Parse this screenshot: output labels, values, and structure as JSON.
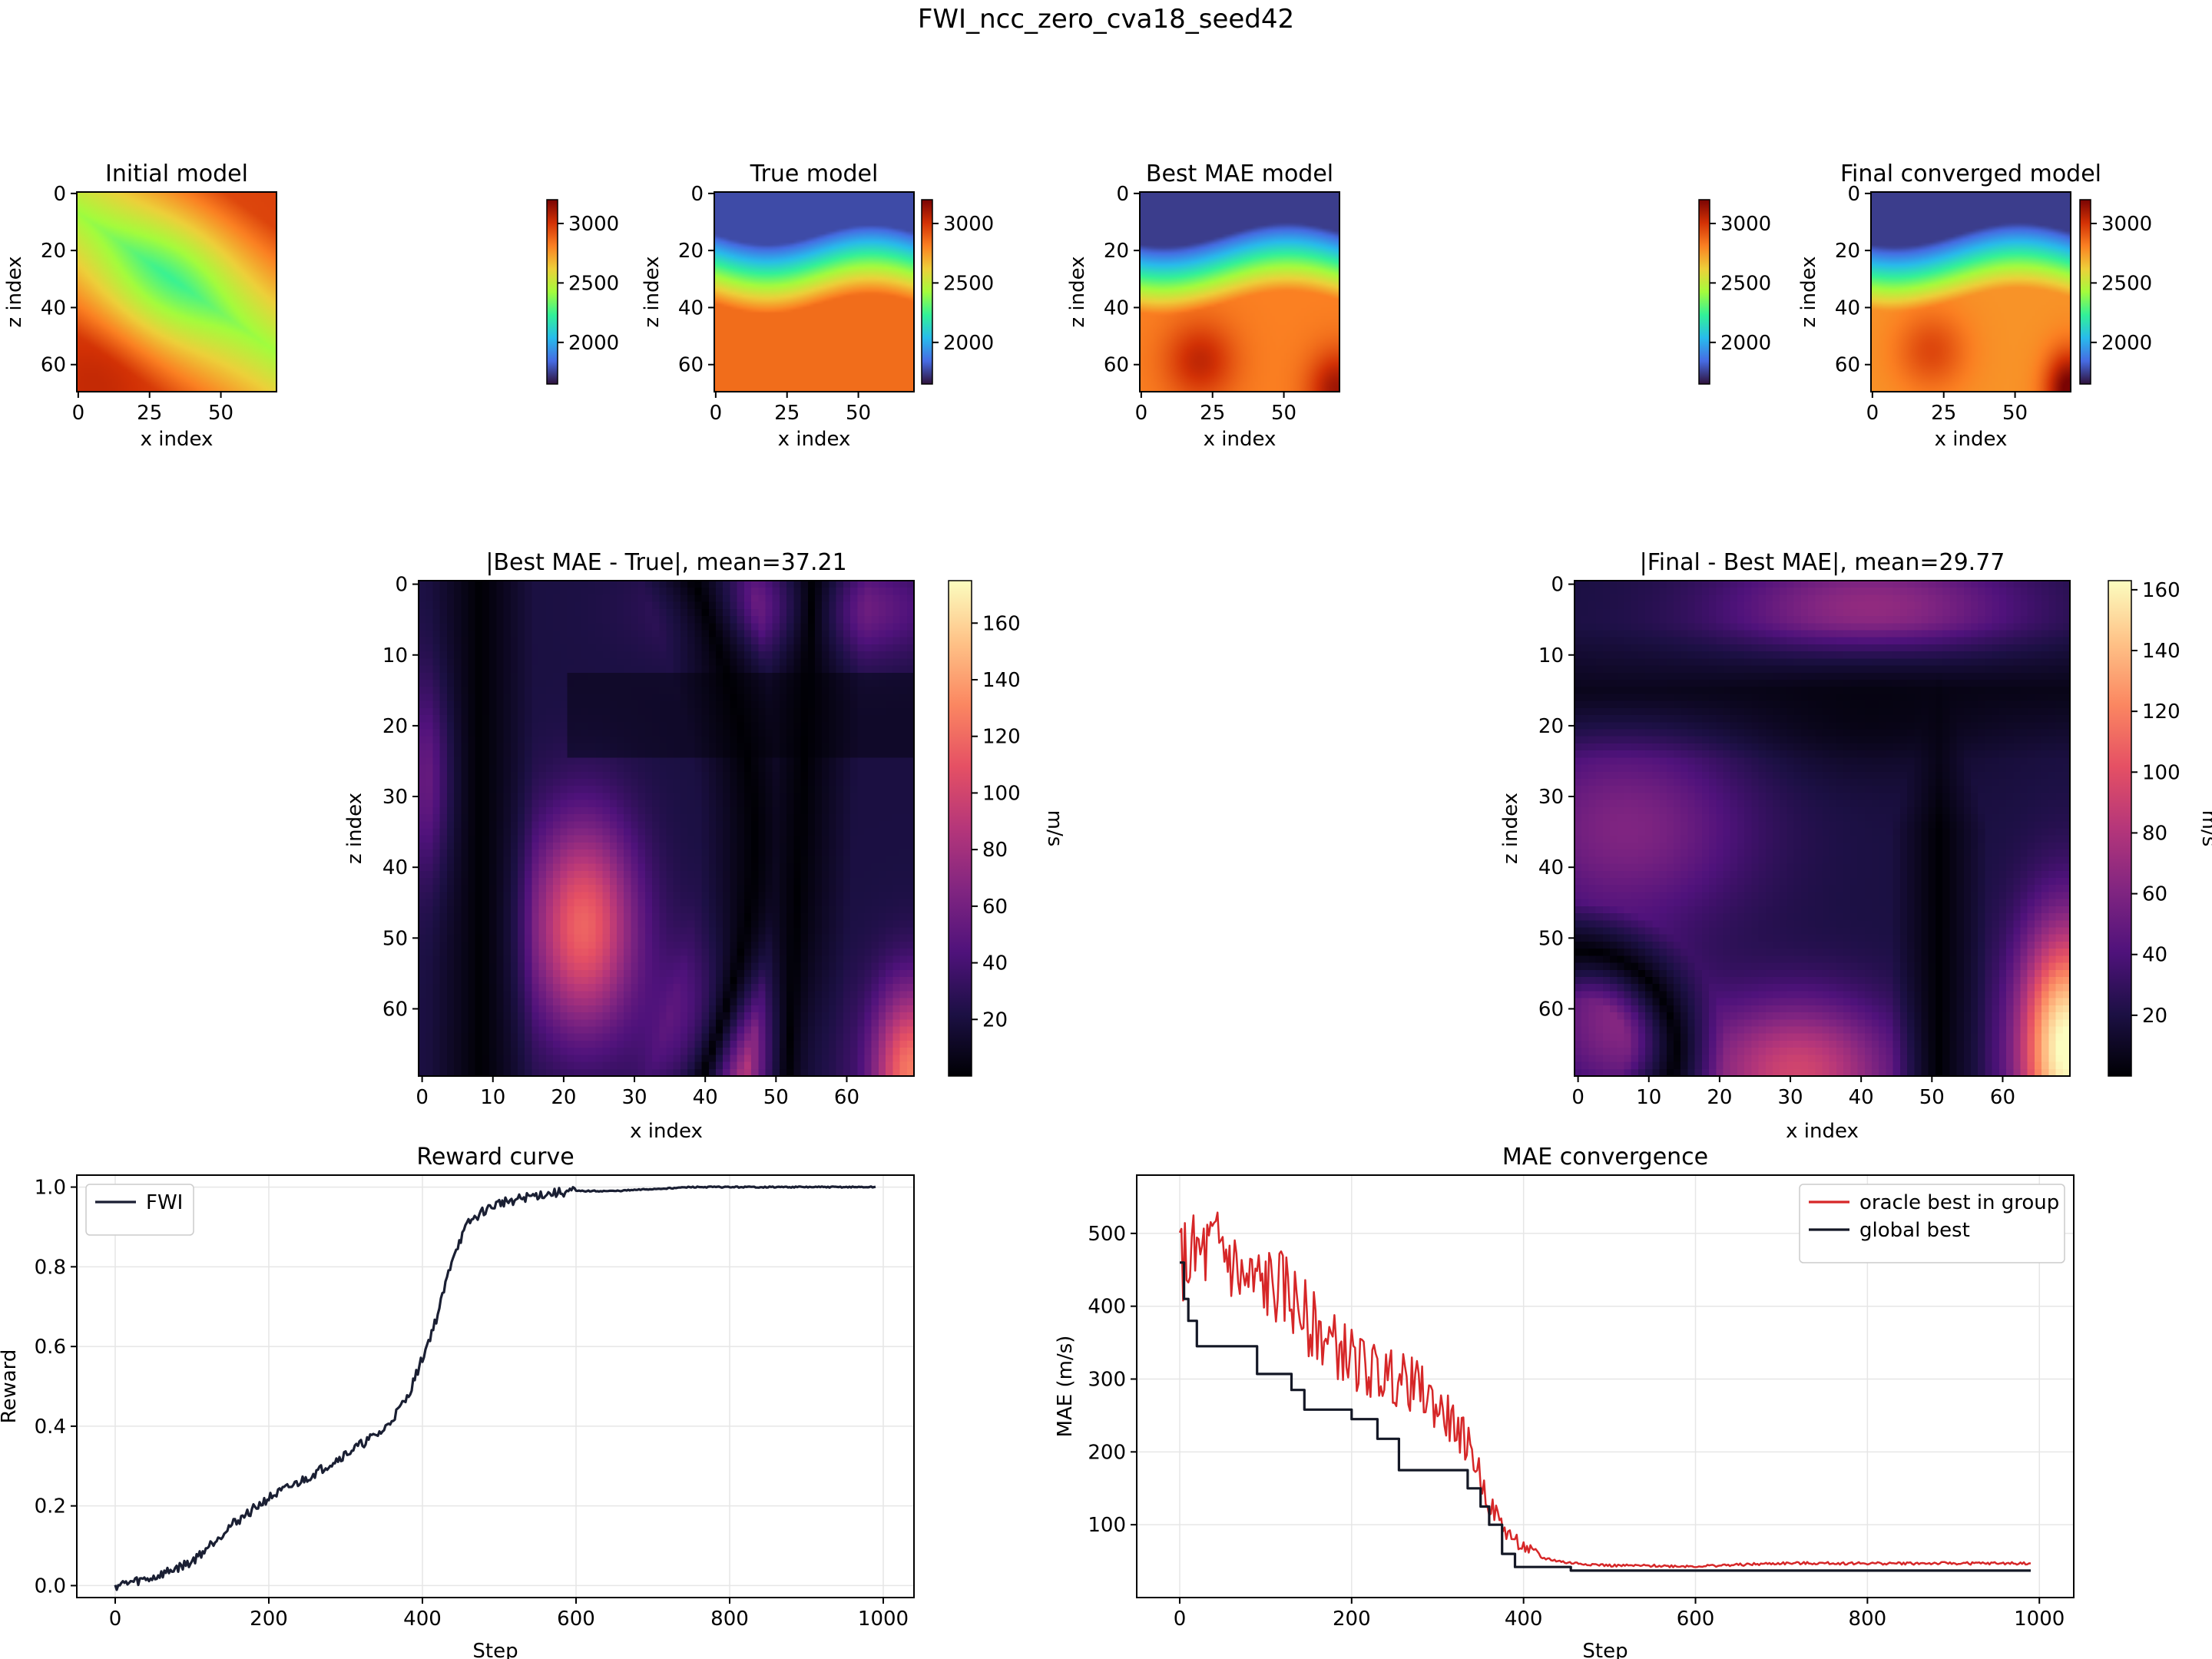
{
  "suptitle": "FWI_ncc_zero_cva18_seed42",
  "colors": {
    "reward_line": "#1a1f33",
    "oracle_line": "#d62728",
    "global_line": "#141826",
    "grid": "#e6e6e6"
  },
  "chart_data": [
    {
      "type": "heatmap",
      "title": "Initial model",
      "xlabel": "x index",
      "ylabel": "z index",
      "colormap": "turbo",
      "xticks": [
        0,
        25,
        50
      ],
      "yticks": [
        0,
        20,
        40,
        60
      ],
      "grid_size": [
        70,
        70
      ],
      "colorbar": {
        "range": [
          1650,
          3200
        ],
        "ticks": [
          2000,
          2500,
          3000
        ],
        "label": ""
      },
      "description_values": {
        "center_low": 2300,
        "corners_high": 3000
      }
    },
    {
      "type": "heatmap",
      "title": "True model",
      "xlabel": "x index",
      "ylabel": "z index",
      "colormap": "turbo",
      "xticks": [
        0,
        25,
        50
      ],
      "yticks": [
        0,
        20,
        40,
        60
      ],
      "grid_size": [
        70,
        70
      ],
      "colorbar": {
        "range": [
          1650,
          3200
        ],
        "ticks": [
          2000,
          2500,
          3000
        ],
        "label": ""
      }
    },
    {
      "type": "heatmap",
      "title": "Best MAE model",
      "xlabel": "x index",
      "ylabel": "z index",
      "colormap": "turbo",
      "xticks": [
        0,
        25,
        50
      ],
      "yticks": [
        0,
        20,
        40,
        60
      ],
      "grid_size": [
        70,
        70
      ],
      "colorbar": {
        "range": [
          1650,
          3200
        ],
        "ticks": [
          2000,
          2500,
          3000
        ],
        "label": ""
      }
    },
    {
      "type": "heatmap",
      "title": "Final converged model",
      "xlabel": "x index",
      "ylabel": "z index",
      "colormap": "turbo",
      "xticks": [
        0,
        25,
        50
      ],
      "yticks": [
        0,
        20,
        40,
        60
      ],
      "grid_size": [
        70,
        70
      ],
      "colorbar": {
        "range": [
          1650,
          3200
        ],
        "ticks": [
          2000,
          2500,
          3000
        ],
        "label": ""
      }
    },
    {
      "type": "heatmap",
      "title": "|Best MAE - True|, mean=37.21",
      "xlabel": "x index",
      "ylabel": "z index",
      "colormap": "magma",
      "xticks": [
        0,
        10,
        20,
        30,
        40,
        50,
        60
      ],
      "yticks": [
        0,
        10,
        20,
        30,
        40,
        50,
        60
      ],
      "grid_size": [
        70,
        70
      ],
      "colorbar": {
        "range": [
          0,
          175
        ],
        "ticks": [
          20,
          40,
          60,
          80,
          100,
          120,
          140,
          160
        ],
        "label": "m/s"
      }
    },
    {
      "type": "heatmap",
      "title": "|Final - Best MAE|, mean=29.77",
      "xlabel": "x index",
      "ylabel": "z index",
      "colormap": "magma",
      "xticks": [
        0,
        10,
        20,
        30,
        40,
        50,
        60
      ],
      "yticks": [
        0,
        10,
        20,
        30,
        40,
        50,
        60
      ],
      "grid_size": [
        70,
        70
      ],
      "colorbar": {
        "range": [
          0,
          163
        ],
        "ticks": [
          20,
          40,
          60,
          80,
          100,
          120,
          140,
          160
        ],
        "label": "m/s"
      }
    },
    {
      "type": "line",
      "title": "Reward curve",
      "xlabel": "Step",
      "ylabel": "Reward",
      "xlim": [
        -50,
        1040
      ],
      "ylim": [
        -0.03,
        1.03
      ],
      "xticks": [
        0,
        200,
        400,
        600,
        800,
        1000
      ],
      "yticks": [
        0.0,
        0.2,
        0.4,
        0.6,
        0.8,
        1.0
      ],
      "ytick_labels": [
        "0.0",
        "0.2",
        "0.4",
        "0.6",
        "0.8",
        "1.0"
      ],
      "grid": true,
      "legend_position": "top-left",
      "series": [
        {
          "name": "FWI",
          "x": [
            0,
            50,
            100,
            150,
            200,
            250,
            300,
            350,
            380,
            400,
            420,
            440,
            460,
            480,
            500,
            550,
            600,
            650,
            700,
            750,
            800,
            900,
            990
          ],
          "y": [
            0.0,
            0.02,
            0.06,
            0.15,
            0.22,
            0.27,
            0.33,
            0.39,
            0.47,
            0.57,
            0.68,
            0.83,
            0.91,
            0.94,
            0.96,
            0.98,
            0.99,
            0.99,
            0.995,
            1.0,
            1.0,
            1.0,
            1.0
          ]
        }
      ]
    },
    {
      "type": "line",
      "title": "MAE convergence",
      "xlabel": "Step",
      "ylabel": "MAE (m/s)",
      "xlim": [
        -50,
        1040
      ],
      "ylim": [
        0,
        580
      ],
      "xticks": [
        0,
        200,
        400,
        600,
        800,
        1000
      ],
      "yticks": [
        100,
        200,
        300,
        400,
        500
      ],
      "grid": true,
      "legend_position": "top-right",
      "series": [
        {
          "name": "oracle best in group",
          "x": [
            0,
            25,
            50,
            75,
            100,
            125,
            150,
            175,
            200,
            225,
            250,
            275,
            300,
            325,
            340,
            360,
            380,
            400,
            420,
            450,
            500,
            600,
            700,
            800,
            900,
            990
          ],
          "y": [
            460,
            470,
            480,
            430,
            430,
            420,
            380,
            350,
            330,
            310,
            300,
            290,
            260,
            230,
            200,
            130,
            90,
            70,
            55,
            48,
            44,
            43,
            47,
            47,
            47,
            47
          ]
        },
        {
          "name": "global best",
          "x": [
            0,
            5,
            5,
            10,
            10,
            20,
            20,
            90,
            90,
            130,
            130,
            145,
            145,
            200,
            200,
            230,
            230,
            255,
            255,
            335,
            335,
            350,
            350,
            360,
            360,
            375,
            375,
            390,
            390,
            455,
            455,
            990
          ],
          "y": [
            460,
            460,
            410,
            410,
            380,
            380,
            345,
            345,
            307,
            307,
            285,
            285,
            258,
            258,
            245,
            245,
            218,
            218,
            175,
            175,
            150,
            150,
            125,
            125,
            100,
            100,
            60,
            60,
            42,
            42,
            37,
            37
          ]
        }
      ]
    }
  ]
}
